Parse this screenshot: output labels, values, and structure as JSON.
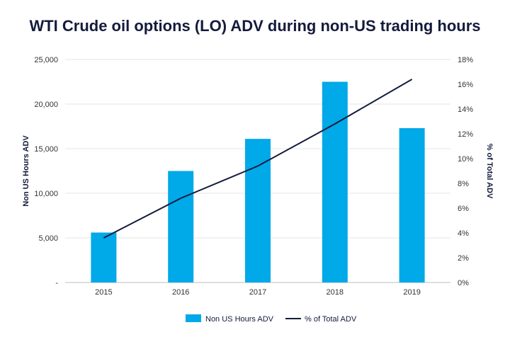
{
  "chart_data": {
    "type": "bar",
    "title": "WTI Crude oil options (LO) ADV during non-US trading hours",
    "categories": [
      "2015",
      "2016",
      "2017",
      "2018",
      "2019"
    ],
    "series": [
      {
        "name": "Non US Hours ADV",
        "type": "bar",
        "axis": "left",
        "values": [
          5600,
          12500,
          16100,
          22500,
          17300
        ],
        "color": "#00a9e8"
      },
      {
        "name": "% of Total ADV",
        "type": "line",
        "axis": "right",
        "values": [
          3.6,
          6.8,
          9.4,
          12.8,
          16.4
        ],
        "color": "#141b3c"
      }
    ],
    "ylabel": "Non US Hours ADV",
    "ylabel_right": "% of Total ADV",
    "ylim": [
      0,
      25000
    ],
    "ylim_right": [
      0,
      18
    ],
    "y_ticks": [
      "-",
      "5,000",
      "10,000",
      "15,000",
      "20,000",
      "25,000"
    ],
    "y_ticks_right": [
      "0%",
      "2%",
      "4%",
      "6%",
      "8%",
      "10%",
      "12%",
      "14%",
      "16%",
      "18%"
    ],
    "grid": true,
    "legend": "bottom-center"
  }
}
